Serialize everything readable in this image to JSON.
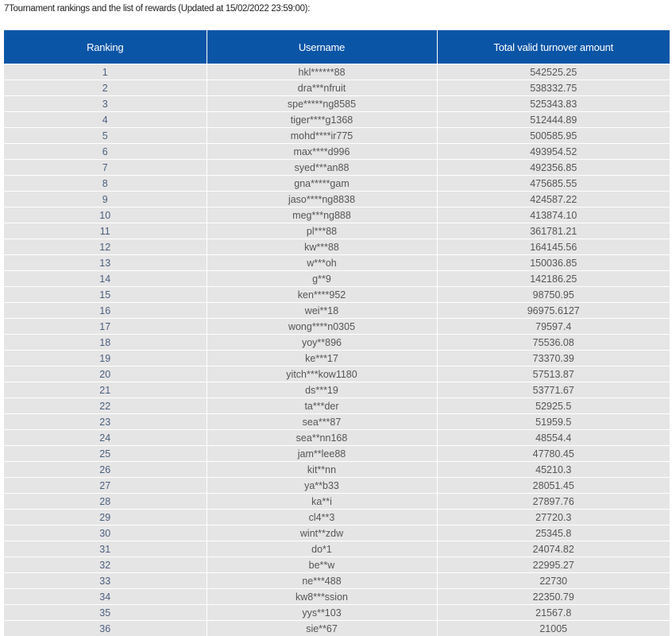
{
  "title": "7Tournament rankings and the list of rewards (Updated at 15/02/2022 23:59:00):",
  "colors": {
    "header_bg": "#0b55a6",
    "row_bg": "#e6e5e5"
  },
  "table": {
    "headers": [
      "Ranking",
      "Username",
      "Total valid turnover amount"
    ],
    "rows": [
      [
        "1",
        "hkl******88",
        "542525.25"
      ],
      [
        "2",
        "dra***nfruit",
        "538332.75"
      ],
      [
        "3",
        "spe*****ng8585",
        "525343.83"
      ],
      [
        "4",
        "tiger****g1368",
        "512444.89"
      ],
      [
        "5",
        "mohd****ir775",
        "500585.95"
      ],
      [
        "6",
        "max****d996",
        "493954.52"
      ],
      [
        "7",
        "syed***an88",
        "492356.85"
      ],
      [
        "8",
        "gna*****gam",
        "475685.55"
      ],
      [
        "9",
        "jaso****ng8838",
        "424587.22"
      ],
      [
        "10",
        "meg***ng888",
        "413874.10"
      ],
      [
        "11",
        "pl***88",
        "361781.21"
      ],
      [
        "12",
        "kw***88",
        "164145.56"
      ],
      [
        "13",
        "w***oh",
        "150036.85"
      ],
      [
        "14",
        "g**9",
        "142186.25"
      ],
      [
        "15",
        "ken****952",
        "98750.95"
      ],
      [
        "16",
        "wei**18",
        "96975.6127"
      ],
      [
        "17",
        "wong****n0305",
        "79597.4"
      ],
      [
        "18",
        "yoy**896",
        "75536.08"
      ],
      [
        "19",
        "ke***17",
        "73370.39"
      ],
      [
        "20",
        "yitch***kow1180",
        "57513.87"
      ],
      [
        "21",
        "ds***19",
        "53771.67"
      ],
      [
        "22",
        "ta***der",
        "52925.5"
      ],
      [
        "23",
        "sea***87",
        "51959.5"
      ],
      [
        "24",
        "sea**nn168",
        "48554.4"
      ],
      [
        "25",
        "jam**lee88",
        "47780.45"
      ],
      [
        "26",
        "kit**nn",
        "45210.3"
      ],
      [
        "27",
        "ya**b33",
        "28051.45"
      ],
      [
        "28",
        "ka**i",
        "27897.76"
      ],
      [
        "29",
        "cl4**3",
        "27720.3"
      ],
      [
        "30",
        "wint**zdw",
        "25345.8"
      ],
      [
        "31",
        "do*1",
        "24074.82"
      ],
      [
        "32",
        "be**w",
        "22995.27"
      ],
      [
        "33",
        "ne***488",
        "22730"
      ],
      [
        "34",
        "kw8***ssion",
        "22350.79"
      ],
      [
        "35",
        "yys**103",
        "21567.8"
      ],
      [
        "36",
        "sie**67",
        "21005"
      ]
    ]
  }
}
